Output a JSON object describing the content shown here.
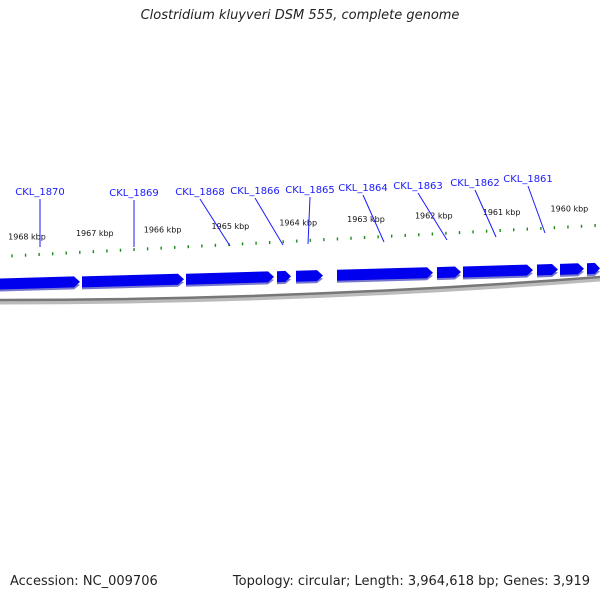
{
  "title": "Clostridium kluyveri DSM 555, complete genome",
  "accession_text": "Accession: NC_009706",
  "summary_text": "Topology: circular; Length: 3,964,618 bp; Genes: 3,919",
  "colors": {
    "gene": "#0000ee",
    "gene_shadow": "#7777cc",
    "gene_label": "#1a1aff",
    "tick": "#1a8a1a",
    "backbone": "#777777"
  },
  "scale": {
    "labels": [
      "1968 kbp",
      "1967 kbp",
      "1966 kbp",
      "1965 kbp",
      "1964 kbp",
      "1963 kbp",
      "1962 kbp",
      "1961 kbp",
      "1960 kbp"
    ],
    "kbp": [
      1968,
      1967,
      1966,
      1965,
      1964,
      1963,
      1962,
      1961,
      1960
    ]
  },
  "genes": [
    {
      "name": "CKL_1870"
    },
    {
      "name": "CKL_1869"
    },
    {
      "name": "CKL_1868"
    },
    {
      "name": "CKL_1866"
    },
    {
      "name": "CKL_1865"
    },
    {
      "name": "CKL_1864"
    },
    {
      "name": "CKL_1863"
    },
    {
      "name": "CKL_1862"
    },
    {
      "name": "CKL_1861"
    }
  ]
}
